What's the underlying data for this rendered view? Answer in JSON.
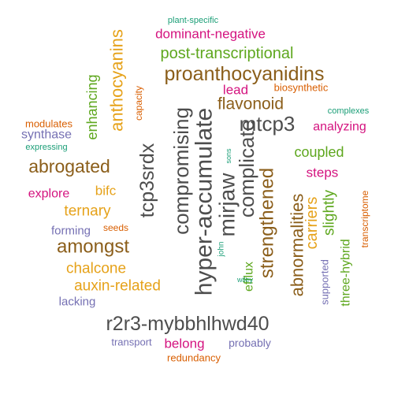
{
  "colors": {
    "brown": "#8B5E1A",
    "dark_gray": "#4D4D4D",
    "magenta": "#D4137F",
    "green": "#5EA71E",
    "gold": "#E6A21A",
    "teal": "#1B9E77",
    "purple": "#7570B3",
    "orange": "#D95F02"
  },
  "words": [
    {
      "text": "plant-specific",
      "color": "teal"
    },
    {
      "text": "dominant-negative",
      "color": "magenta"
    },
    {
      "text": "post-transcriptional",
      "color": "green"
    },
    {
      "text": "proanthocyanidins",
      "color": "brown"
    },
    {
      "text": "anthocyanins",
      "color": "gold"
    },
    {
      "text": "enhancing",
      "color": "green"
    },
    {
      "text": "capacity",
      "color": "orange"
    },
    {
      "text": "lead",
      "color": "magenta"
    },
    {
      "text": "biosynthetic",
      "color": "orange"
    },
    {
      "text": "flavonoid",
      "color": "brown"
    },
    {
      "text": "complexes",
      "color": "teal"
    },
    {
      "text": "mtcp3",
      "color": "dark_gray"
    },
    {
      "text": "analyzing",
      "color": "magenta"
    },
    {
      "text": "compromising",
      "color": "dark_gray"
    },
    {
      "text": "hyper-accumulate",
      "color": "dark_gray"
    },
    {
      "text": "complicate",
      "color": "dark_gray"
    },
    {
      "text": "modulates",
      "color": "orange"
    },
    {
      "text": "synthase",
      "color": "purple"
    },
    {
      "text": "expressing",
      "color": "teal"
    },
    {
      "text": "coupled",
      "color": "green"
    },
    {
      "text": "abrogated",
      "color": "brown"
    },
    {
      "text": "tcp3srdx",
      "color": "dark_gray"
    },
    {
      "text": "mirjaw",
      "color": "dark_gray"
    },
    {
      "text": "sons",
      "color": "teal"
    },
    {
      "text": "strengthened",
      "color": "brown"
    },
    {
      "text": "steps",
      "color": "magenta"
    },
    {
      "text": "bifc",
      "color": "gold"
    },
    {
      "text": "explore",
      "color": "magenta"
    },
    {
      "text": "abnormalities",
      "color": "brown"
    },
    {
      "text": "carriers",
      "color": "gold"
    },
    {
      "text": "slightly",
      "color": "green"
    },
    {
      "text": "transcriptome",
      "color": "orange"
    },
    {
      "text": "ternary",
      "color": "gold"
    },
    {
      "text": "seeds",
      "color": "orange"
    },
    {
      "text": "forming",
      "color": "purple"
    },
    {
      "text": "amongst",
      "color": "brown"
    },
    {
      "text": "three-hybrid",
      "color": "green"
    },
    {
      "text": "john",
      "color": "teal"
    },
    {
      "text": "chalcone",
      "color": "gold"
    },
    {
      "text": "efflux",
      "color": "green"
    },
    {
      "text": "supported",
      "color": "purple"
    },
    {
      "text": "wiley",
      "color": "teal"
    },
    {
      "text": "auxin-related",
      "color": "gold"
    },
    {
      "text": "lacking",
      "color": "purple"
    },
    {
      "text": "r2r3-mybbhlhwd40",
      "color": "dark_gray"
    },
    {
      "text": "transport",
      "color": "purple"
    },
    {
      "text": "belong",
      "color": "magenta"
    },
    {
      "text": "probably",
      "color": "purple"
    },
    {
      "text": "redundancy",
      "color": "orange"
    }
  ]
}
